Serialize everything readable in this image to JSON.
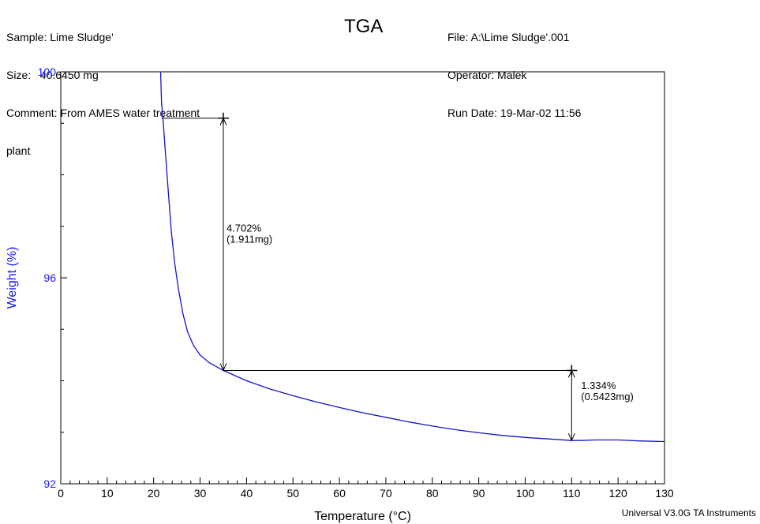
{
  "header": {
    "sample_line": "Sample: Lime Sludge'",
    "size_line": "Size:   40.6450 mg",
    "comment_line1": "Comment: From AMES water treatment",
    "comment_line2": "plant",
    "file_line": "File: A:\\Lime Sludge'.001",
    "operator_line": "Operator: Malek",
    "rundate_line": "Run Date: 19-Mar-02 11:56"
  },
  "footer": "Universal V3.0G TA Instruments",
  "colors": {
    "curve": "#1515c8",
    "ylabel": "#1a1aff",
    "axis": "#000000"
  },
  "chart_data": {
    "type": "line",
    "title": "TGA",
    "xlabel": "Temperature (°C)",
    "ylabel": "Weight (%)",
    "xlim": [
      0,
      130
    ],
    "ylim": [
      92,
      100
    ],
    "x_ticks": [
      "0",
      "10",
      "20",
      "30",
      "40",
      "50",
      "60",
      "70",
      "80",
      "90",
      "100",
      "110",
      "120",
      "130"
    ],
    "y_ticks": [
      "92",
      "96",
      "100"
    ],
    "grid": false,
    "series": [
      {
        "x": [
          21.5,
          21.7,
          22.0,
          22.4,
          22.8,
          23.3,
          23.8,
          24.5,
          25.3,
          26.3,
          27.3,
          28.5,
          30.0,
          32.0,
          35.0,
          40,
          45,
          50,
          55,
          60,
          65,
          70,
          75,
          80,
          85,
          90,
          95,
          100,
          105,
          110,
          112,
          115,
          120,
          125,
          130
        ],
        "y": [
          100,
          99.4,
          99.1,
          98.6,
          98.1,
          97.5,
          96.9,
          96.3,
          95.8,
          95.3,
          94.95,
          94.7,
          94.5,
          94.35,
          94.2,
          94.0,
          93.84,
          93.71,
          93.59,
          93.48,
          93.38,
          93.29,
          93.2,
          93.12,
          93.05,
          92.99,
          92.94,
          92.9,
          92.87,
          92.84,
          92.84,
          92.85,
          92.85,
          92.83,
          92.82
        ]
      }
    ],
    "annotations": [
      {
        "x": 35,
        "y_top": 99.1,
        "y_bottom": 94.2,
        "x_from": 21.7,
        "x_to": 110,
        "label1": "4.702%",
        "label2": "(1.911mg)"
      },
      {
        "x": 110,
        "y_top": 94.2,
        "y_bottom": 92.84,
        "label1": "1.334%",
        "label2": "(0.5423mg)"
      }
    ]
  }
}
